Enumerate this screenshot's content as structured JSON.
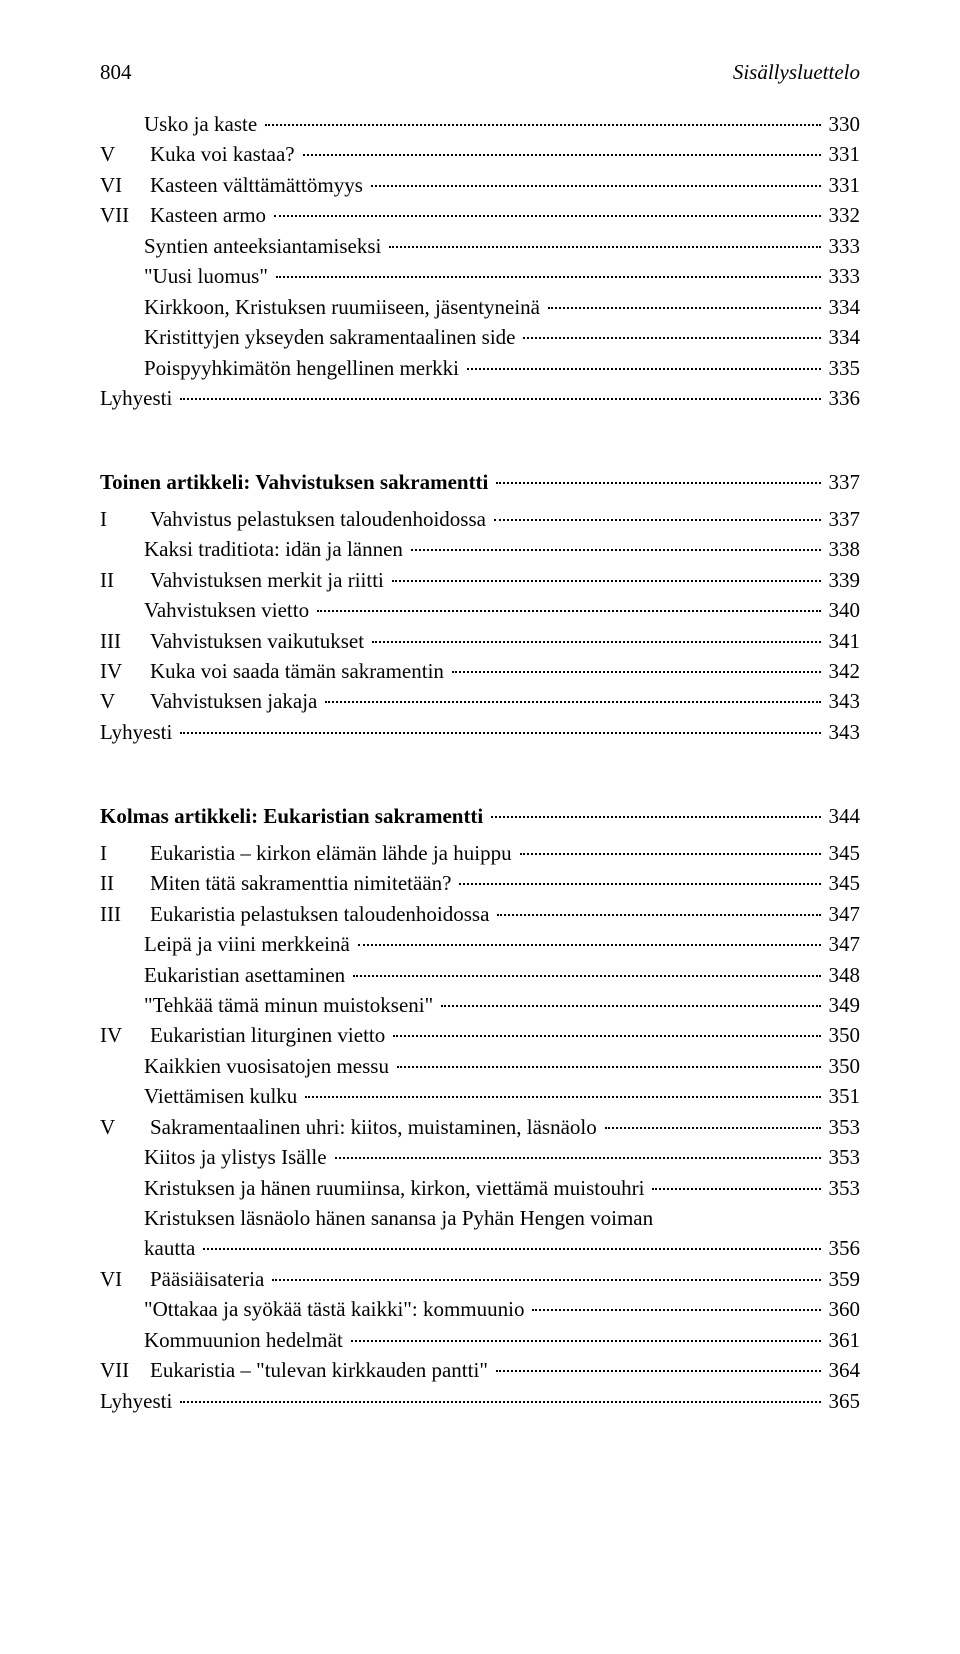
{
  "header": {
    "page_number": "804",
    "running_title": "Sisällysluettelo"
  },
  "groups": [
    {
      "entries": [
        {
          "label": "",
          "indent": "sub",
          "text": "Usko ja kaste",
          "page": "330"
        },
        {
          "label": "V",
          "indent": "roman",
          "text": "Kuka voi kastaa?",
          "page": "331"
        },
        {
          "label": "VI",
          "indent": "roman",
          "text": "Kasteen välttämättömyys",
          "page": "331"
        },
        {
          "label": "VII",
          "indent": "roman",
          "text": "Kasteen armo",
          "page": "332"
        },
        {
          "label": "",
          "indent": "sub",
          "text": "Syntien anteeksiantamiseksi",
          "page": "333"
        },
        {
          "label": "",
          "indent": "sub",
          "text": "\"Uusi luomus\"",
          "page": "333"
        },
        {
          "label": "",
          "indent": "sub",
          "text": "Kirkkoon, Kristuksen ruumiiseen, jäsentyneinä",
          "page": "334"
        },
        {
          "label": "",
          "indent": "sub",
          "text": "Kristittyjen ykseyden sakramentaalinen side",
          "page": "334"
        },
        {
          "label": "",
          "indent": "sub",
          "text": "Poispyyhkimätön hengellinen merkki",
          "page": "335"
        },
        {
          "label": "",
          "indent": "none",
          "text": "Lyhyesti",
          "page": "336"
        }
      ]
    },
    {
      "heading": {
        "text": "Toinen artikkeli: Vahvistuksen sakramentti",
        "page": "337"
      },
      "entries": [
        {
          "label": "I",
          "indent": "roman",
          "text": "Vahvistus pelastuksen taloudenhoidossa",
          "page": "337"
        },
        {
          "label": "",
          "indent": "sub",
          "text": "Kaksi traditiota: idän ja lännen",
          "page": "338"
        },
        {
          "label": "II",
          "indent": "roman",
          "text": "Vahvistuksen merkit ja riitti",
          "page": "339"
        },
        {
          "label": "",
          "indent": "sub",
          "text": "Vahvistuksen vietto",
          "page": "340"
        },
        {
          "label": "III",
          "indent": "roman",
          "text": "Vahvistuksen vaikutukset",
          "page": "341"
        },
        {
          "label": "IV",
          "indent": "roman",
          "text": "Kuka voi saada tämän sakramentin",
          "page": "342"
        },
        {
          "label": "V",
          "indent": "roman",
          "text": "Vahvistuksen jakaja",
          "page": "343"
        },
        {
          "label": "",
          "indent": "none",
          "text": "Lyhyesti",
          "page": "343"
        }
      ]
    },
    {
      "heading": {
        "text": "Kolmas artikkeli: Eukaristian sakramentti",
        "page": "344"
      },
      "entries": [
        {
          "label": "I",
          "indent": "roman",
          "text": "Eukaristia – kirkon elämän lähde ja huippu",
          "page": "345"
        },
        {
          "label": "II",
          "indent": "roman",
          "text": "Miten tätä sakramenttia nimitetään?",
          "page": "345"
        },
        {
          "label": "III",
          "indent": "roman",
          "text": "Eukaristia pelastuksen taloudenhoidossa",
          "page": "347"
        },
        {
          "label": "",
          "indent": "sub",
          "text": "Leipä ja viini merkkeinä",
          "page": "347"
        },
        {
          "label": "",
          "indent": "sub",
          "text": "Eukaristian asettaminen",
          "page": "348"
        },
        {
          "label": "",
          "indent": "sub",
          "text": "\"Tehkää tämä minun muistokseni\"",
          "page": "349"
        },
        {
          "label": "IV",
          "indent": "roman",
          "text": "Eukaristian liturginen vietto",
          "page": "350"
        },
        {
          "label": "",
          "indent": "sub",
          "text": "Kaikkien vuosisatojen messu",
          "page": "350"
        },
        {
          "label": "",
          "indent": "sub",
          "text": "Viettämisen kulku",
          "page": "351"
        },
        {
          "label": "V",
          "indent": "roman",
          "text": "Sakramentaalinen uhri: kiitos, muistaminen, läsnäolo",
          "page": "353"
        },
        {
          "label": "",
          "indent": "sub",
          "text": "Kiitos ja ylistys Isälle",
          "page": "353"
        },
        {
          "label": "",
          "indent": "sub",
          "text": "Kristuksen ja hänen ruumiinsa, kirkon, viettämä muistouhri",
          "page": "353"
        },
        {
          "label": "",
          "indent": "sub",
          "text": "Kristuksen läsnäolo hänen sanansa ja Pyhän Hengen voiman kautta",
          "page": "356",
          "wrap": true
        },
        {
          "label": "VI",
          "indent": "roman",
          "text": "Pääsiäisateria",
          "page": "359"
        },
        {
          "label": "",
          "indent": "sub",
          "text": "\"Ottakaa ja syökää tästä kaikki\": kommuunio",
          "page": "360"
        },
        {
          "label": "",
          "indent": "sub",
          "text": "Kommuunion hedelmät",
          "page": "361"
        },
        {
          "label": "VII",
          "indent": "roman",
          "text": "Eukaristia – \"tulevan kirkkauden pantti\"",
          "page": "364"
        },
        {
          "label": "",
          "indent": "none",
          "text": "Lyhyesti",
          "page": "365"
        }
      ]
    }
  ]
}
